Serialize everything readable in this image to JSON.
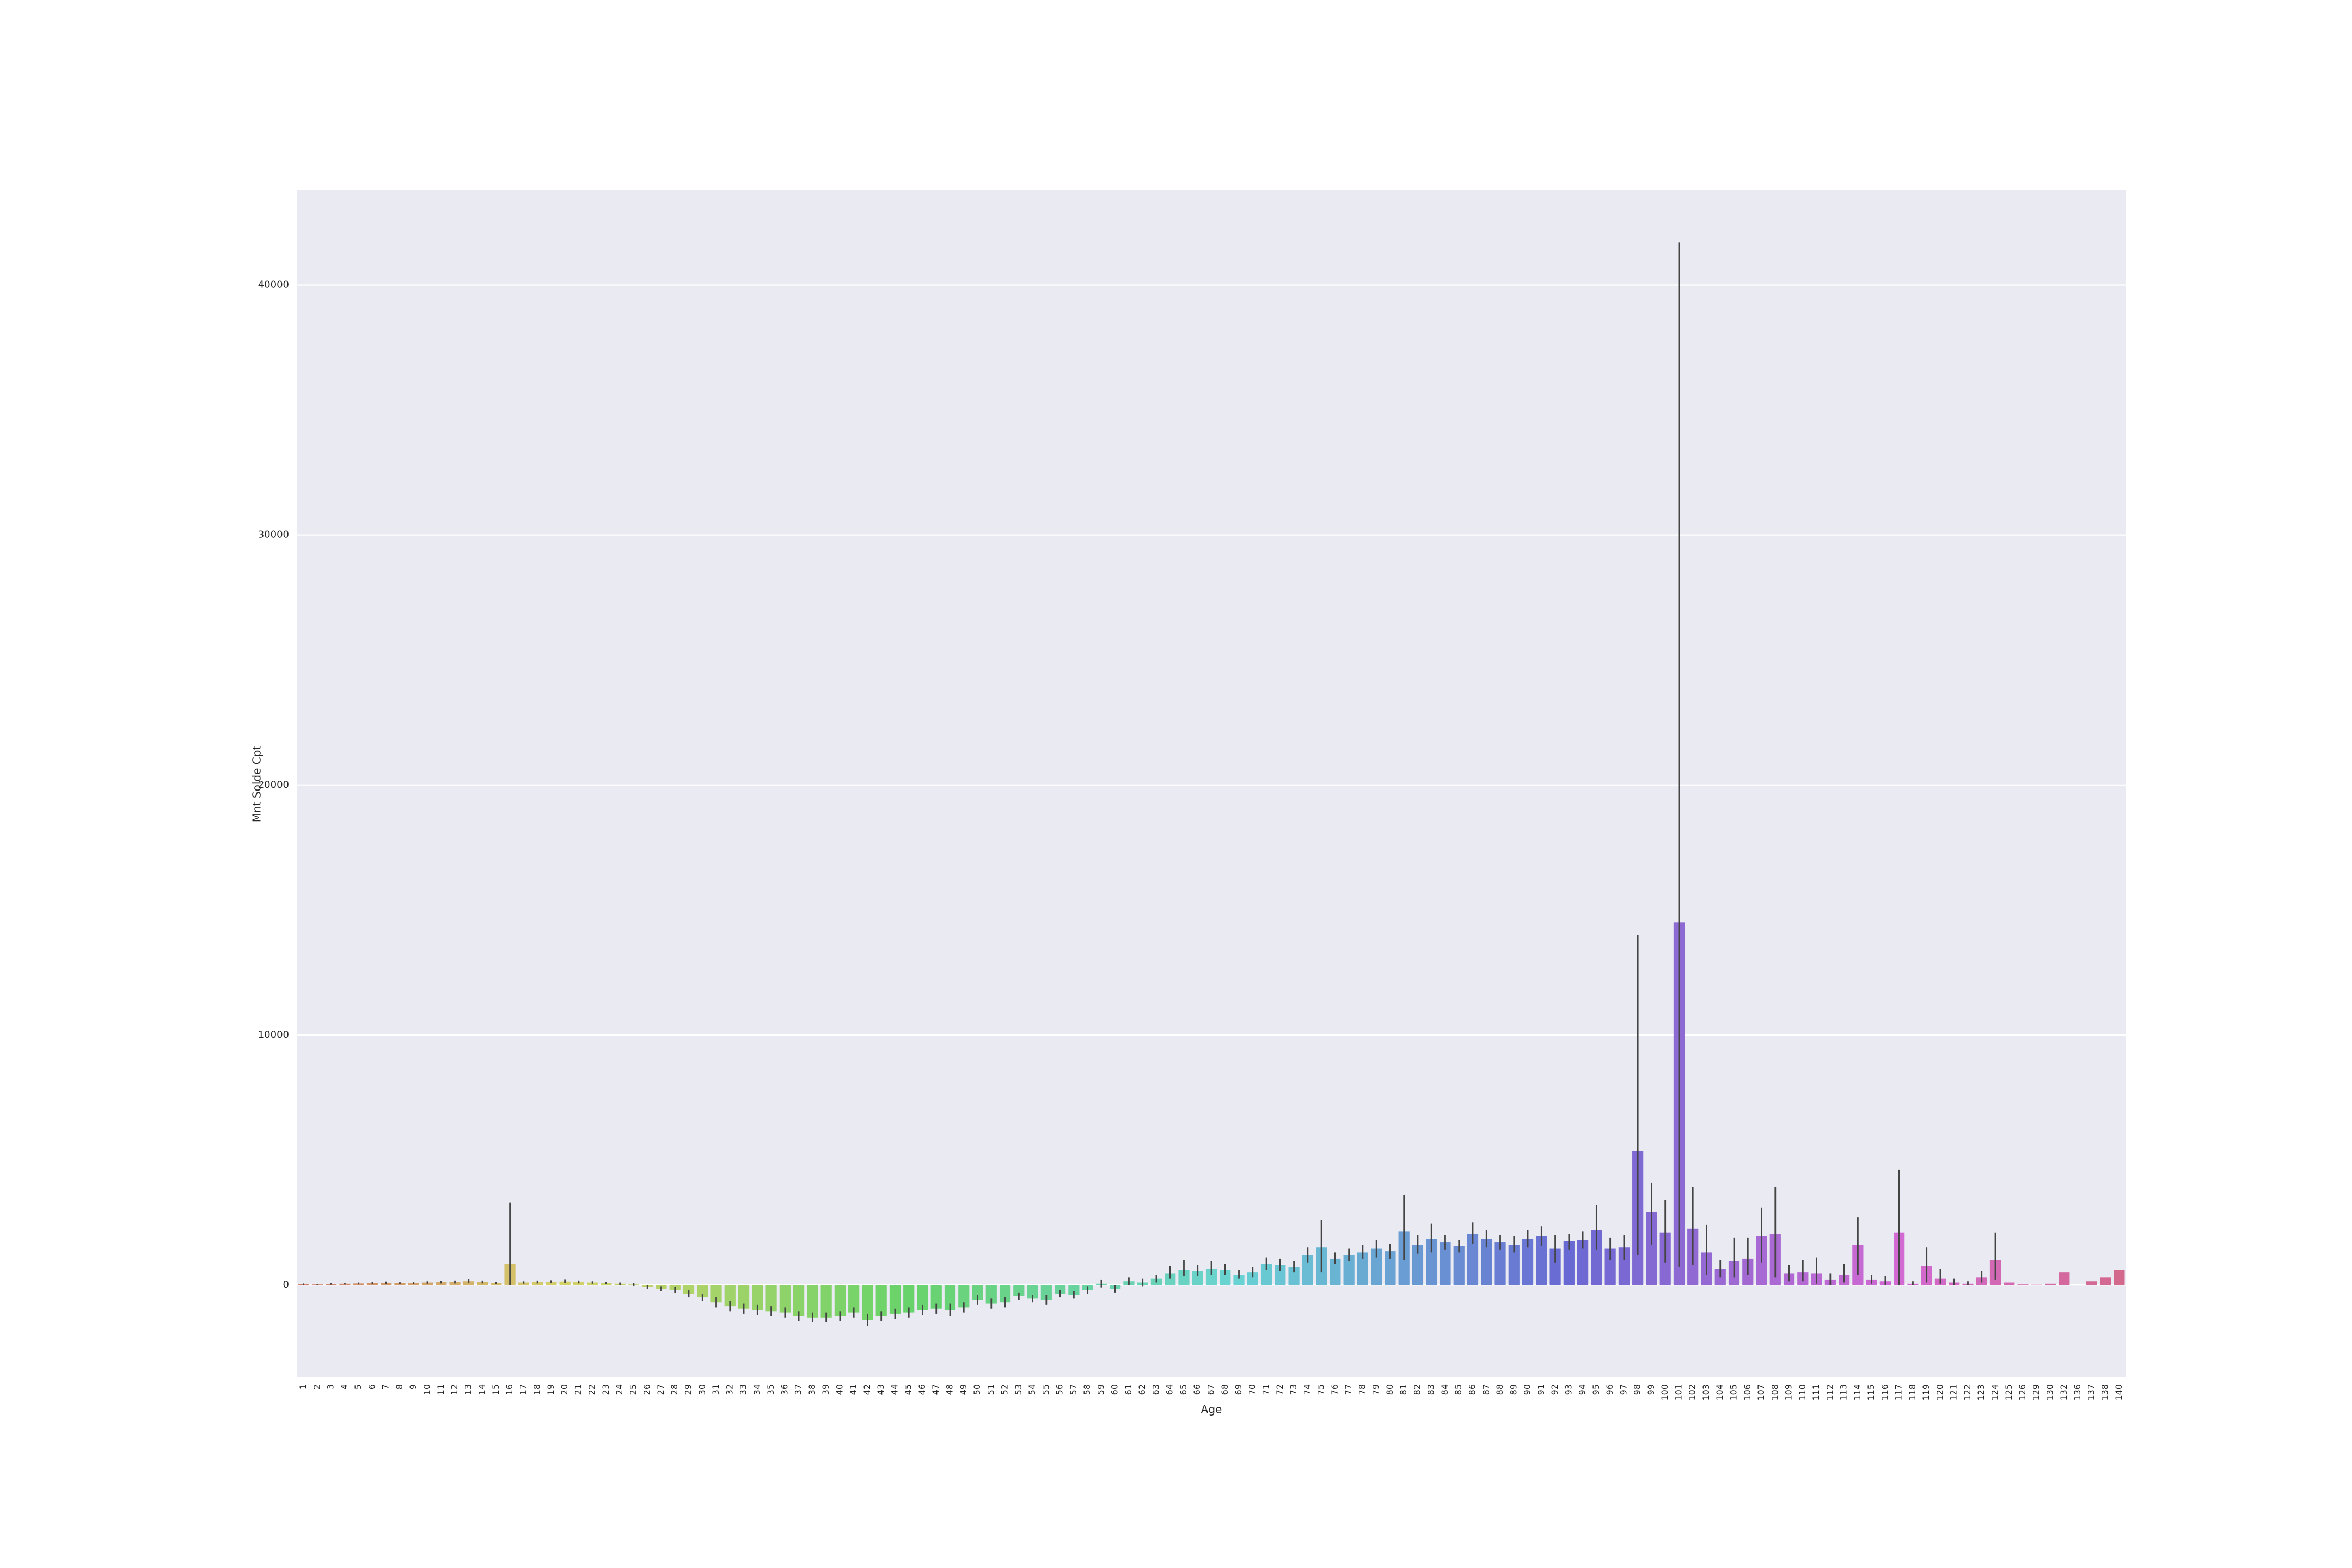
{
  "chart_data": {
    "type": "bar",
    "x_label": "Age",
    "y_label": "Mnt Solde Cpt",
    "palette": "husl",
    "background": "#eaeaf2",
    "grid": true,
    "error_color": "#444444",
    "ylim": [
      -3700,
      43800
    ],
    "yticks": [
      0,
      10000,
      20000,
      30000,
      40000
    ],
    "categories": [
      1,
      2,
      3,
      4,
      5,
      6,
      7,
      8,
      9,
      10,
      11,
      12,
      13,
      14,
      15,
      16,
      17,
      18,
      19,
      20,
      21,
      22,
      23,
      24,
      25,
      26,
      27,
      28,
      29,
      30,
      31,
      32,
      33,
      34,
      35,
      36,
      37,
      38,
      39,
      40,
      41,
      42,
      43,
      44,
      45,
      46,
      47,
      48,
      49,
      50,
      51,
      52,
      53,
      54,
      55,
      56,
      57,
      58,
      59,
      60,
      61,
      62,
      63,
      64,
      65,
      66,
      67,
      68,
      69,
      70,
      71,
      72,
      73,
      74,
      75,
      76,
      77,
      78,
      79,
      80,
      81,
      82,
      83,
      84,
      85,
      86,
      87,
      88,
      89,
      90,
      91,
      92,
      93,
      94,
      95,
      96,
      97,
      98,
      99,
      100,
      101,
      102,
      103,
      104,
      105,
      106,
      107,
      108,
      109,
      110,
      111,
      112,
      113,
      114,
      115,
      116,
      117,
      118,
      119,
      120,
      121,
      122,
      123,
      124,
      125,
      126,
      129,
      130,
      132,
      136,
      137,
      138,
      140
    ],
    "values": [
      30,
      20,
      40,
      50,
      60,
      80,
      90,
      70,
      80,
      100,
      110,
      120,
      150,
      120,
      80,
      850,
      100,
      120,
      130,
      140,
      120,
      100,
      80,
      50,
      20,
      -80,
      -150,
      -200,
      -350,
      -500,
      -700,
      -850,
      -950,
      -1000,
      -1050,
      -1100,
      -1250,
      -1300,
      -1300,
      -1250,
      -1100,
      -1400,
      -1250,
      -1150,
      -1100,
      -1000,
      -950,
      -1000,
      -900,
      -600,
      -750,
      -700,
      -450,
      -550,
      -600,
      -350,
      -400,
      -200,
      50,
      -150,
      150,
      100,
      250,
      450,
      600,
      550,
      650,
      600,
      400,
      500,
      850,
      800,
      700,
      1200,
      1500,
      1050,
      1200,
      1300,
      1450,
      1350,
      2150,
      1600,
      1850,
      1700,
      1550,
      2050,
      1850,
      1700,
      1600,
      1850,
      1950,
      1450,
      1750,
      1800,
      2200,
      1450,
      1500,
      5350,
      2900,
      2100,
      14500,
      2250,
      1300,
      650,
      950,
      1050,
      1950,
      2050,
      450,
      500,
      450,
      200,
      400,
      1600,
      200,
      150,
      2100,
      50,
      750,
      250,
      100,
      50,
      300,
      1000,
      100,
      20,
      10,
      50,
      500,
      0,
      150,
      300,
      600
    ],
    "ci": [
      [
        0,
        60
      ],
      [
        0,
        40
      ],
      [
        10,
        70
      ],
      [
        20,
        80
      ],
      [
        20,
        100
      ],
      [
        30,
        130
      ],
      [
        40,
        140
      ],
      [
        30,
        110
      ],
      [
        40,
        120
      ],
      [
        50,
        150
      ],
      [
        60,
        160
      ],
      [
        60,
        180
      ],
      [
        80,
        230
      ],
      [
        60,
        180
      ],
      [
        40,
        130
      ],
      [
        0,
        3300
      ],
      [
        50,
        150
      ],
      [
        60,
        180
      ],
      [
        70,
        190
      ],
      [
        70,
        210
      ],
      [
        60,
        180
      ],
      [
        50,
        150
      ],
      [
        30,
        130
      ],
      [
        0,
        100
      ],
      [
        -40,
        80
      ],
      [
        -160,
        0
      ],
      [
        -250,
        -50
      ],
      [
        -320,
        -80
      ],
      [
        -500,
        -200
      ],
      [
        -650,
        -350
      ],
      [
        -900,
        -500
      ],
      [
        -1050,
        -650
      ],
      [
        -1150,
        -750
      ],
      [
        -1200,
        -800
      ],
      [
        -1250,
        -850
      ],
      [
        -1300,
        -900
      ],
      [
        -1450,
        -1050
      ],
      [
        -1500,
        -1100
      ],
      [
        -1500,
        -1100
      ],
      [
        -1450,
        -1050
      ],
      [
        -1300,
        -900
      ],
      [
        -1650,
        -1150
      ],
      [
        -1450,
        -1050
      ],
      [
        -1350,
        -950
      ],
      [
        -1300,
        -900
      ],
      [
        -1200,
        -800
      ],
      [
        -1150,
        -750
      ],
      [
        -1250,
        -750
      ],
      [
        -1100,
        -700
      ],
      [
        -800,
        -400
      ],
      [
        -950,
        -550
      ],
      [
        -900,
        -500
      ],
      [
        -600,
        -300
      ],
      [
        -700,
        -400
      ],
      [
        -800,
        -400
      ],
      [
        -500,
        -200
      ],
      [
        -550,
        -250
      ],
      [
        -350,
        -50
      ],
      [
        -100,
        200
      ],
      [
        -300,
        0
      ],
      [
        0,
        300
      ],
      [
        -50,
        250
      ],
      [
        100,
        400
      ],
      [
        250,
        750
      ],
      [
        350,
        1000
      ],
      [
        350,
        800
      ],
      [
        400,
        950
      ],
      [
        400,
        850
      ],
      [
        250,
        600
      ],
      [
        300,
        700
      ],
      [
        600,
        1100
      ],
      [
        550,
        1050
      ],
      [
        500,
        950
      ],
      [
        900,
        1500
      ],
      [
        500,
        2600
      ],
      [
        850,
        1300
      ],
      [
        950,
        1450
      ],
      [
        1050,
        1600
      ],
      [
        1100,
        1800
      ],
      [
        1050,
        1650
      ],
      [
        1000,
        3600
      ],
      [
        1250,
        2000
      ],
      [
        1300,
        2450
      ],
      [
        1400,
        2000
      ],
      [
        1300,
        1800
      ],
      [
        1650,
        2500
      ],
      [
        1500,
        2200
      ],
      [
        1400,
        2000
      ],
      [
        1300,
        1950
      ],
      [
        1500,
        2200
      ],
      [
        1550,
        2350
      ],
      [
        900,
        2000
      ],
      [
        1400,
        2050
      ],
      [
        1450,
        2150
      ],
      [
        1400,
        3200
      ],
      [
        1000,
        1900
      ],
      [
        1000,
        2000
      ],
      [
        1200,
        14000
      ],
      [
        1600,
        4100
      ],
      [
        900,
        3400
      ],
      [
        700,
        41700
      ],
      [
        800,
        3900
      ],
      [
        400,
        2400
      ],
      [
        300,
        1000
      ],
      [
        300,
        1900
      ],
      [
        400,
        1900
      ],
      [
        900,
        3100
      ],
      [
        300,
        3900
      ],
      [
        150,
        800
      ],
      [
        150,
        1000
      ],
      [
        50,
        1100
      ],
      [
        0,
        450
      ],
      [
        100,
        850
      ],
      [
        400,
        2700
      ],
      [
        50,
        400
      ],
      [
        0,
        350
      ],
      [
        0,
        4600
      ],
      [
        0,
        150
      ],
      [
        100,
        1500
      ],
      [
        50,
        650
      ],
      [
        0,
        250
      ],
      [
        0,
        150
      ],
      [
        100,
        550
      ],
      [
        200,
        2100
      ],
      null,
      null,
      null,
      null,
      null,
      null,
      null,
      null,
      null
    ]
  }
}
